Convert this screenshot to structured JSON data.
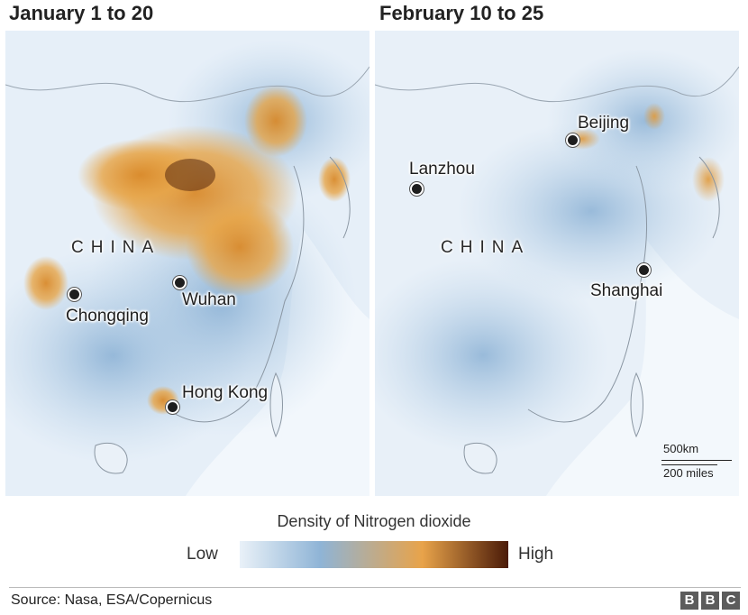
{
  "panels": [
    {
      "title": "January 1 to 20",
      "country_label": "CHINA",
      "cities": [
        {
          "name": "Chongqing"
        },
        {
          "name": "Wuhan"
        },
        {
          "name": "Hong Kong"
        }
      ]
    },
    {
      "title": "February 10 to 25",
      "country_label": "CHINA",
      "cities": [
        {
          "name": "Lanzhou"
        },
        {
          "name": "Beijing"
        },
        {
          "name": "Shanghai"
        }
      ]
    }
  ],
  "scale": {
    "km": "500km",
    "miles": "200 miles"
  },
  "legend": {
    "title": "Density of Nitrogen dioxide",
    "low": "Low",
    "high": "High",
    "colors": [
      "#e9f1f8",
      "#8fb4d6",
      "#e8a34a",
      "#4a1a08"
    ]
  },
  "source": "Source: Nasa, ESA/Copernicus",
  "logo": [
    "B",
    "B",
    "C"
  ]
}
